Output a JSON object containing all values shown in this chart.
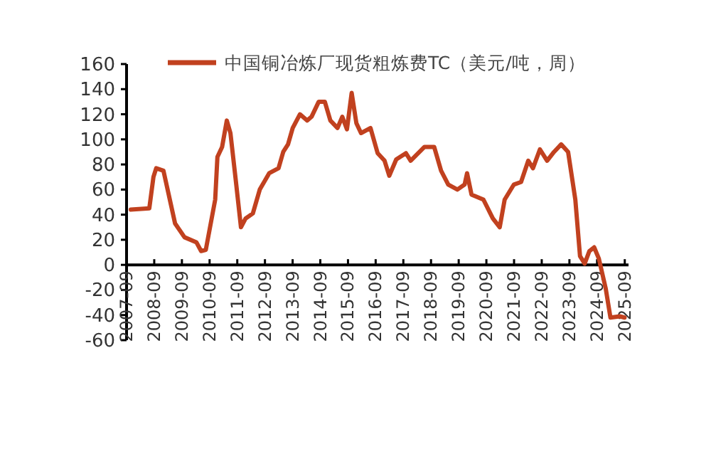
{
  "chart_data": {
    "type": "line",
    "legend": "top",
    "grid": false,
    "marker": "none",
    "line_style": "solid",
    "xlim": [
      "2007-09",
      "2025-10-20"
    ],
    "ylim": [
      -60,
      160
    ],
    "yticks": [
      -60,
      -40,
      -20,
      0,
      20,
      40,
      60,
      80,
      100,
      120,
      140,
      160
    ],
    "xticks": [
      "2007-09",
      "2008-09",
      "2009-09",
      "2010-09",
      "2011-09",
      "2012-09",
      "2013-09",
      "2014-09",
      "2015-09",
      "2016-09",
      "2017-09",
      "2018-09",
      "2019-09",
      "2020-09",
      "2021-09",
      "2022-09",
      "2023-09",
      "2024-09",
      "2025-09"
    ],
    "series": [
      {
        "name": "中国铜冶炼厂现货粗炼费TC（美元/吨，周）",
        "color": "#c1411f",
        "x": [
          "2007-10-26",
          "2008-06-27",
          "2008-08-21",
          "2008-09-27",
          "2009-01-01",
          "2009-06-02",
          "2009-10-05",
          "2010-03-09",
          "2010-05-11",
          "2010-07-12",
          "2010-11-14",
          "2010-12-13",
          "2011-02-14",
          "2011-04-15",
          "2011-06-02",
          "2011-08-18",
          "2011-10-19",
          "2011-12-20",
          "2012-03-24",
          "2012-06-24",
          "2012-10-26",
          "2013-02-28",
          "2013-04-29",
          "2013-07-01",
          "2013-09-02",
          "2013-12-06",
          "2014-03-09",
          "2014-05-07",
          "2014-08-11",
          "2014-10-30",
          "2015-01-12",
          "2015-04-15",
          "2015-06-17",
          "2015-08-18",
          "2015-10-19",
          "2015-12-20",
          "2016-02-21",
          "2016-06-24",
          "2016-09-27",
          "2016-12-27",
          "2017-02-28",
          "2017-05-29",
          "2017-10-05",
          "2017-12-06",
          "2018-06-06",
          "2018-10-12",
          "2019-01-12",
          "2019-04-15",
          "2019-08-14",
          "2019-11-18",
          "2019-12-20",
          "2020-02-18",
          "2020-07-23",
          "2020-11-25",
          "2021-02-25",
          "2021-04-29",
          "2021-08-29",
          "2021-12-02",
          "2022-03-06",
          "2022-05-07",
          "2022-08-07",
          "2022-11-11",
          "2023-02-11",
          "2023-05-14",
          "2023-08-14",
          "2023-11-18",
          "2024-01-19",
          "2024-03-20",
          "2024-05-21",
          "2024-07-23",
          "2024-09-24",
          "2024-12-24",
          "2025-02-25",
          "2025-06-27",
          "2025-08-29"
        ],
        "values": [
          44,
          45,
          70,
          77,
          75,
          33,
          22,
          18,
          11,
          12,
          52,
          86,
          94,
          115,
          105,
          64,
          30,
          37,
          41,
          60,
          73,
          77,
          90,
          96,
          109,
          120,
          115,
          118,
          130,
          130,
          115,
          109,
          118,
          108,
          137,
          113,
          105,
          109,
          89,
          83,
          71,
          84,
          89,
          83,
          94,
          94,
          75,
          64,
          60,
          64,
          73,
          56,
          52,
          37,
          30,
          52,
          64,
          66,
          83,
          77,
          92,
          83,
          90,
          96,
          90,
          52,
          7,
          1,
          11,
          14,
          5,
          -19,
          -42,
          -41,
          -42
        ]
      }
    ]
  }
}
